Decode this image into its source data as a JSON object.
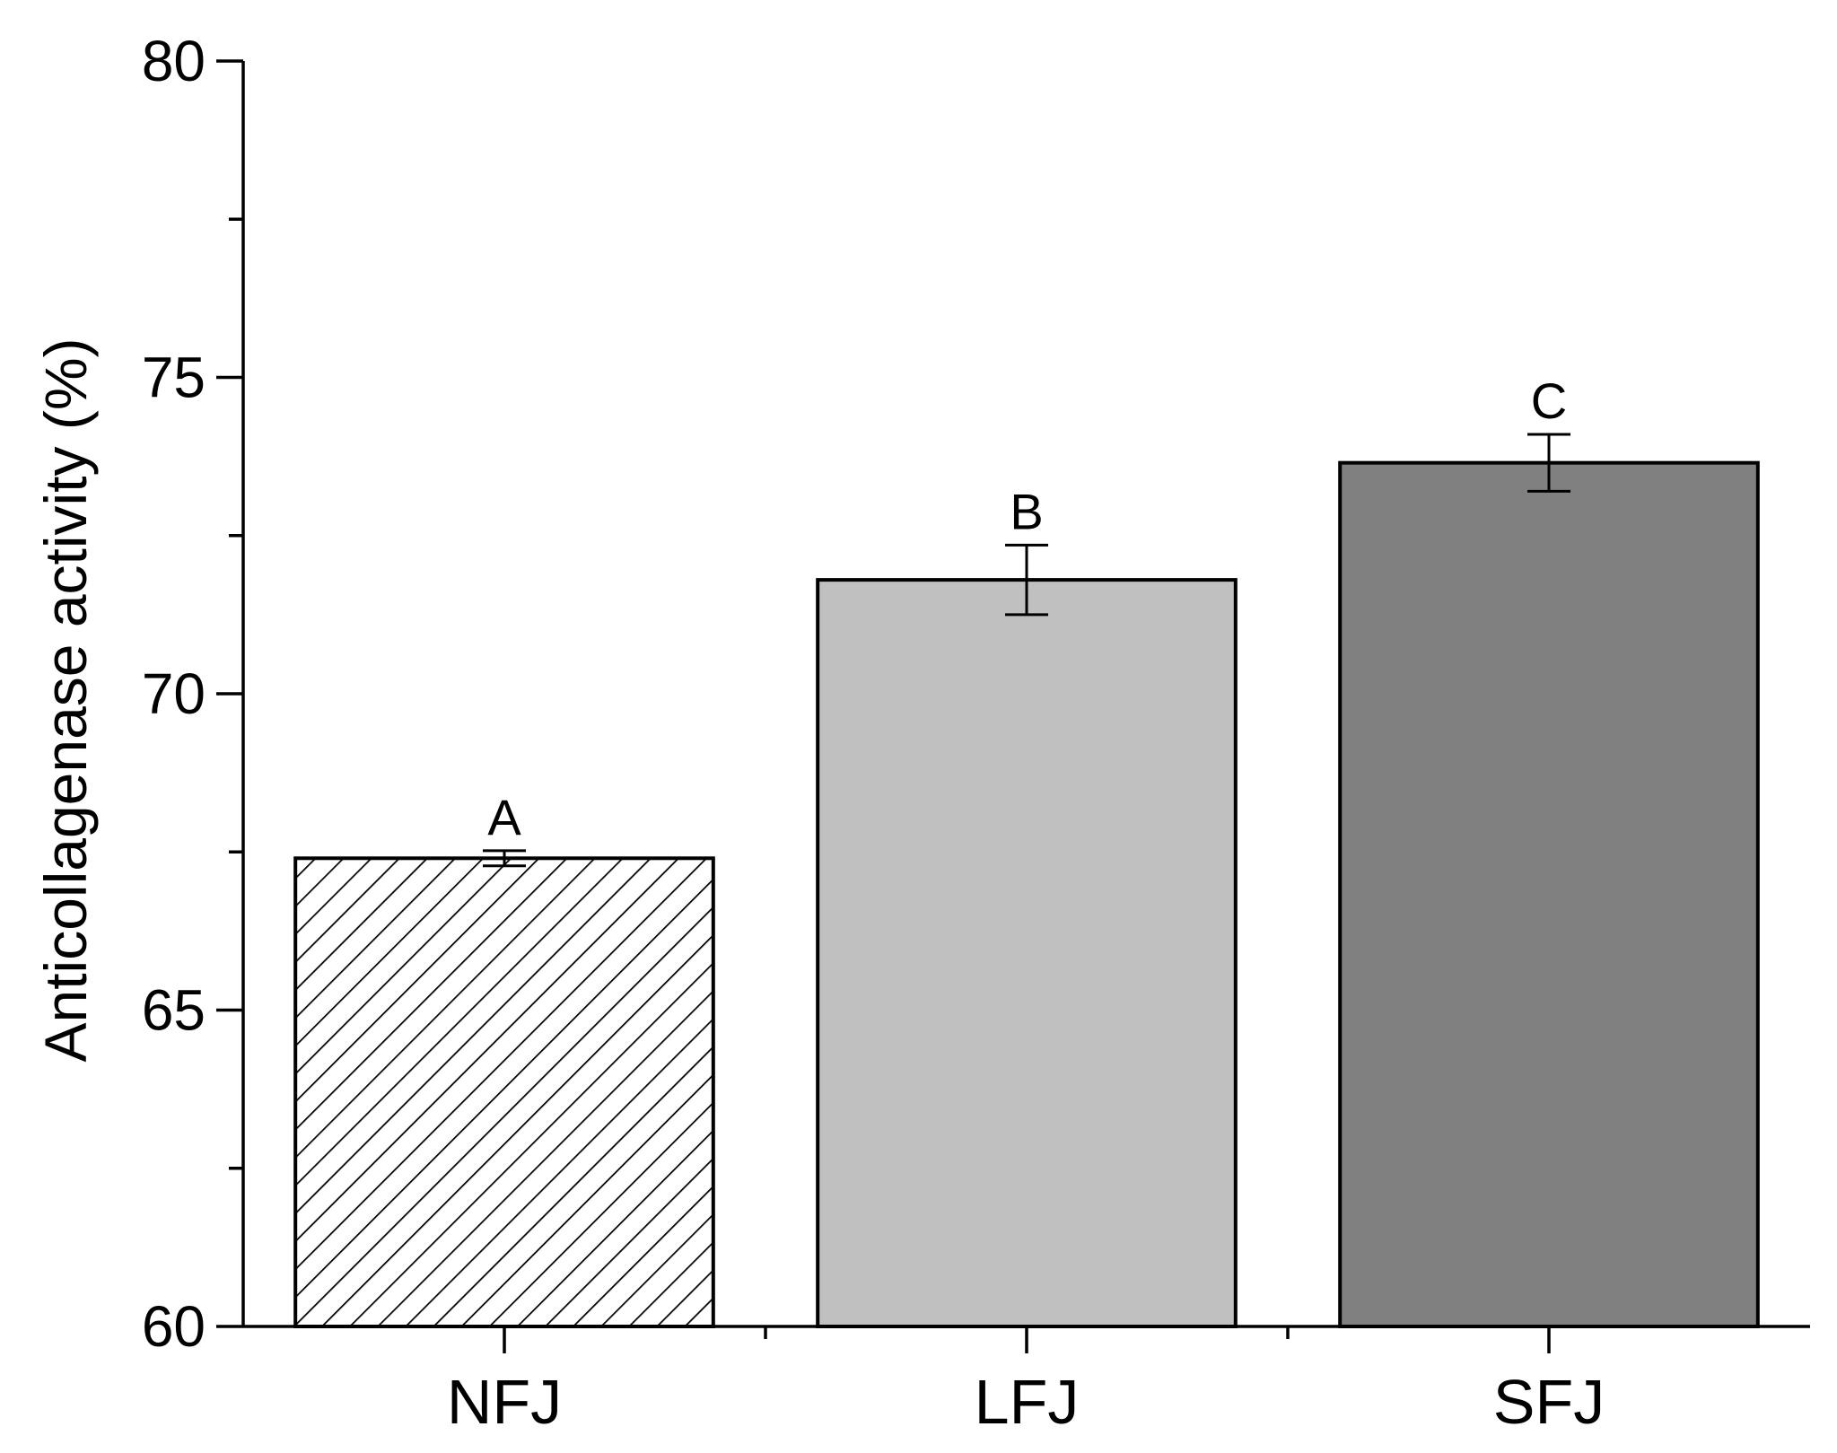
{
  "chart_data": {
    "type": "bar",
    "title": "",
    "xlabel": "",
    "ylabel": "Anticollagenase activity (%)",
    "ylim": [
      60,
      80
    ],
    "yticks": [
      60,
      65,
      70,
      75,
      80
    ],
    "categories": [
      "NFJ",
      "LFJ",
      "SFJ"
    ],
    "values": [
      67.4,
      71.8,
      73.65
    ],
    "errors": [
      0.12,
      0.55,
      0.45
    ],
    "significance_labels": [
      "A",
      "B",
      "C"
    ],
    "bar_colors": [
      "#ffffff",
      "#c0c0c0",
      "#808080"
    ],
    "bar_patterns": [
      "diagonal-hatch",
      "solid",
      "solid"
    ],
    "grid": false,
    "legend": "none"
  }
}
